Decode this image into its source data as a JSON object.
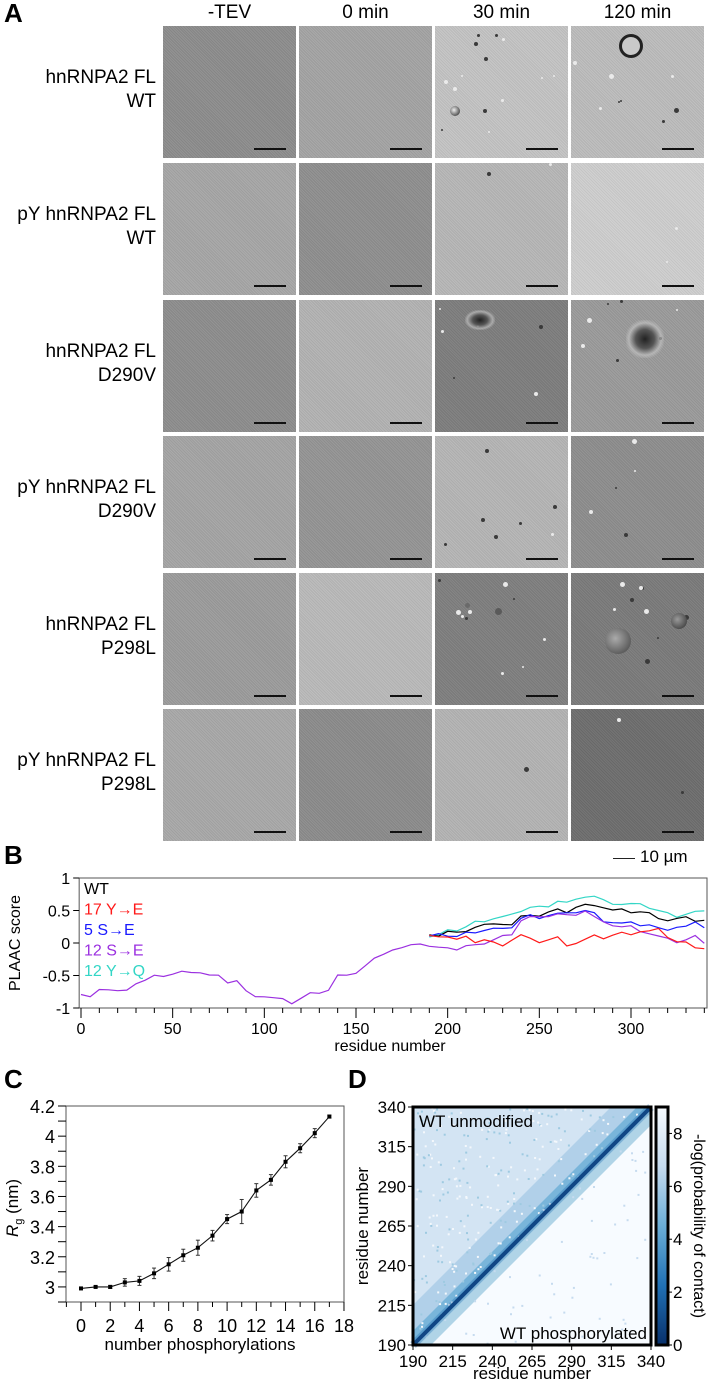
{
  "panels": {
    "A": {
      "letter": "A",
      "columns": [
        "-TEV",
        "0 min",
        "30 min",
        "120 min"
      ],
      "rows": [
        {
          "line1": "hnRNPA2 FL",
          "line2": "WT",
          "tones": [
            "#8d8d8d",
            "#a4a4a4",
            "#c4c4c4",
            "#bdbdbd"
          ]
        },
        {
          "line1": "pY hnRNPA2 FL",
          "line2": "WT",
          "tones": [
            "#a7a7a7",
            "#8f8f8f",
            "#b7b7b7",
            "#cfcfcf"
          ]
        },
        {
          "line1": "hnRNPA2 FL",
          "line2": "D290V",
          "tones": [
            "#8e8e8e",
            "#b3b3b3",
            "#7e7e7e",
            "#9b9b9b"
          ]
        },
        {
          "line1": "pY hnRNPA2 FL",
          "line2": "D290V",
          "tones": [
            "#a5a5a5",
            "#959595",
            "#b6b6b6",
            "#8e8e8e"
          ]
        },
        {
          "line1": "hnRNPA2 FL",
          "line2": "P298L",
          "tones": [
            "#9c9c9c",
            "#bababa",
            "#7f7f7f",
            "#7b7b7b"
          ]
        },
        {
          "line1": "pY hnRNPA2 FL",
          "line2": "P298L",
          "tones": [
            "#a9a9a9",
            "#8c8c8c",
            "#b4b4b4",
            "#6e6e6e"
          ]
        }
      ],
      "scale_bar_label": "10 µm"
    },
    "B": {
      "letter": "B"
    },
    "C": {
      "letter": "C"
    },
    "D": {
      "letter": "D"
    }
  },
  "chart_data": [
    {
      "id": "B",
      "type": "line",
      "title": "",
      "xlabel": "residue number",
      "ylabel": "PLAAC score",
      "xlim": [
        -1,
        341
      ],
      "ylim": [
        -1,
        1
      ],
      "xticks": [
        0,
        50,
        100,
        150,
        200,
        250,
        300
      ],
      "yticks": [
        -1,
        -0.5,
        0,
        0.5,
        1
      ],
      "grid": false,
      "legend_position": "upper-left-inside",
      "x": [
        0,
        5,
        10,
        15,
        20,
        25,
        30,
        35,
        40,
        45,
        50,
        55,
        60,
        65,
        70,
        75,
        80,
        85,
        90,
        95,
        100,
        105,
        110,
        115,
        120,
        125,
        130,
        135,
        140,
        145,
        150,
        155,
        160,
        165,
        170,
        175,
        180,
        185,
        190,
        195,
        200,
        205,
        210,
        215,
        220,
        225,
        230,
        235,
        240,
        245,
        250,
        255,
        260,
        265,
        270,
        275,
        280,
        285,
        290,
        295,
        300,
        305,
        310,
        315,
        320,
        325,
        330,
        335,
        340
      ],
      "series": [
        {
          "name": "WT",
          "color": "#000000",
          "values": [
            -0.8,
            -0.85,
            -0.7,
            -0.72,
            -0.75,
            -0.7,
            -0.62,
            -0.58,
            -0.52,
            -0.5,
            -0.48,
            -0.45,
            -0.43,
            -0.45,
            -0.5,
            -0.52,
            -0.6,
            -0.58,
            -0.75,
            -0.8,
            -0.82,
            -0.85,
            -0.88,
            -0.92,
            -0.85,
            -0.78,
            -0.75,
            -0.72,
            -0.5,
            -0.52,
            -0.45,
            -0.35,
            -0.25,
            -0.15,
            -0.1,
            -0.05,
            0.0,
            0.08,
            0.1,
            0.12,
            0.18,
            0.15,
            0.2,
            0.25,
            0.28,
            0.27,
            0.3,
            0.28,
            0.4,
            0.45,
            0.42,
            0.47,
            0.5,
            0.48,
            0.55,
            0.58,
            0.6,
            0.55,
            0.5,
            0.5,
            0.48,
            0.48,
            0.45,
            0.4,
            0.35,
            0.37,
            0.38,
            0.35,
            0.35
          ]
        },
        {
          "name": "17 Y→E",
          "color": "#ff1a1a",
          "values": [
            -0.8,
            -0.85,
            -0.7,
            -0.72,
            -0.75,
            -0.7,
            -0.62,
            -0.58,
            -0.52,
            -0.5,
            -0.48,
            -0.45,
            -0.43,
            -0.45,
            -0.5,
            -0.52,
            -0.6,
            -0.58,
            -0.75,
            -0.8,
            -0.82,
            -0.85,
            -0.88,
            -0.92,
            -0.85,
            -0.78,
            -0.75,
            -0.72,
            -0.5,
            -0.52,
            -0.45,
            -0.35,
            -0.25,
            -0.15,
            -0.1,
            -0.05,
            0.0,
            0.08,
            0.1,
            0.12,
            0.1,
            0.05,
            0.08,
            0.02,
            0.05,
            0.0,
            -0.02,
            0.05,
            0.12,
            0.05,
            0.02,
            0.05,
            0.08,
            -0.02,
            0.0,
            0.05,
            0.1,
            0.08,
            0.12,
            0.15,
            0.15,
            0.18,
            0.18,
            0.2,
            0.1,
            0.02,
            0.0,
            -0.05,
            -0.08
          ]
        },
        {
          "name": "5 S→E",
          "color": "#1a1aff",
          "values": [
            -0.8,
            -0.85,
            -0.7,
            -0.72,
            -0.75,
            -0.7,
            -0.62,
            -0.58,
            -0.52,
            -0.5,
            -0.48,
            -0.45,
            -0.43,
            -0.45,
            -0.5,
            -0.52,
            -0.6,
            -0.58,
            -0.75,
            -0.8,
            -0.82,
            -0.85,
            -0.88,
            -0.92,
            -0.85,
            -0.78,
            -0.75,
            -0.72,
            -0.5,
            -0.52,
            -0.45,
            -0.35,
            -0.25,
            -0.15,
            -0.1,
            -0.05,
            0.0,
            0.08,
            0.1,
            0.12,
            0.12,
            0.1,
            0.15,
            0.18,
            0.2,
            0.22,
            0.2,
            0.25,
            0.38,
            0.42,
            0.4,
            0.43,
            0.45,
            0.44,
            0.48,
            0.5,
            0.45,
            0.35,
            0.32,
            0.3,
            0.3,
            0.28,
            0.28,
            0.22,
            0.22,
            0.25,
            0.25,
            0.3,
            0.25
          ]
        },
        {
          "name": "12 S→E",
          "color": "#9b30e0",
          "values": [
            -0.8,
            -0.85,
            -0.7,
            -0.72,
            -0.75,
            -0.7,
            -0.62,
            -0.58,
            -0.52,
            -0.5,
            -0.48,
            -0.45,
            -0.43,
            -0.45,
            -0.5,
            -0.52,
            -0.6,
            -0.58,
            -0.75,
            -0.8,
            -0.82,
            -0.85,
            -0.88,
            -0.92,
            -0.85,
            -0.78,
            -0.75,
            -0.72,
            -0.5,
            -0.52,
            -0.45,
            -0.35,
            -0.25,
            -0.15,
            -0.1,
            -0.08,
            -0.05,
            0.0,
            -0.05,
            -0.08,
            -0.05,
            -0.1,
            -0.05,
            -0.05,
            0.0,
            0.05,
            0.1,
            0.15,
            0.35,
            0.4,
            0.38,
            0.42,
            0.45,
            0.42,
            0.45,
            0.5,
            0.4,
            0.3,
            0.28,
            0.25,
            0.25,
            0.2,
            0.15,
            0.1,
            0.05,
            0.02,
            0.05,
            0.1,
            0.02
          ]
        },
        {
          "name": "12 Y→Q",
          "color": "#33d6c6",
          "values": [
            -0.8,
            -0.85,
            -0.7,
            -0.72,
            -0.75,
            -0.7,
            -0.62,
            -0.58,
            -0.52,
            -0.5,
            -0.48,
            -0.45,
            -0.43,
            -0.45,
            -0.5,
            -0.52,
            -0.6,
            -0.58,
            -0.75,
            -0.8,
            -0.82,
            -0.85,
            -0.88,
            -0.92,
            -0.85,
            -0.78,
            -0.75,
            -0.72,
            -0.5,
            -0.52,
            -0.45,
            -0.35,
            -0.25,
            -0.15,
            -0.1,
            -0.05,
            0.0,
            0.08,
            0.1,
            0.12,
            0.18,
            0.2,
            0.25,
            0.32,
            0.35,
            0.38,
            0.4,
            0.42,
            0.5,
            0.55,
            0.55,
            0.58,
            0.65,
            0.62,
            0.65,
            0.72,
            0.72,
            0.65,
            0.62,
            0.6,
            0.6,
            0.58,
            0.55,
            0.5,
            0.45,
            0.42,
            0.45,
            0.48,
            0.47
          ]
        }
      ]
    },
    {
      "id": "C",
      "type": "line",
      "title": "",
      "xlabel": "number phosphorylations",
      "ylabel": "Rg (nm)",
      "ylabel_main": "R",
      "ylabel_sub": "g",
      "ylabel_unit": " (nm)",
      "xlim": [
        -1,
        18
      ],
      "ylim": [
        2.9,
        4.2
      ],
      "xticks": [
        0,
        2,
        4,
        6,
        8,
        10,
        12,
        14,
        16,
        18
      ],
      "yticks": [
        3,
        3.2,
        3.4,
        3.6,
        3.8,
        4,
        4.2
      ],
      "grid": false,
      "x": [
        0,
        1,
        2,
        3,
        4,
        5,
        6,
        7,
        8,
        9,
        10,
        11,
        12,
        13,
        14,
        15,
        16,
        17
      ],
      "values": [
        2.99,
        3.0,
        3.0,
        3.03,
        3.04,
        3.09,
        3.15,
        3.21,
        3.26,
        3.34,
        3.45,
        3.5,
        3.64,
        3.71,
        3.83,
        3.92,
        4.02,
        4.13
      ],
      "errors": [
        0.005,
        0.005,
        0.01,
        0.025,
        0.03,
        0.035,
        0.045,
        0.04,
        0.05,
        0.035,
        0.03,
        0.08,
        0.045,
        0.035,
        0.04,
        0.03,
        0.03,
        0.01
      ]
    },
    {
      "id": "D",
      "type": "heatmap",
      "title": "",
      "xlabel": "residue number",
      "ylabel": "residue number",
      "xticks": [
        190,
        215,
        240,
        265,
        290,
        315,
        340
      ],
      "yticks": [
        190,
        215,
        240,
        265,
        290,
        315,
        340
      ],
      "range": [
        190,
        340
      ],
      "upper_label": "WT unmodified",
      "lower_label": "WT phosphorylated",
      "colorbar_label": "-log(probability of contact)",
      "colorbar_ticks": [
        0,
        2,
        4,
        6,
        8
      ],
      "colorbar_range": [
        0,
        9
      ],
      "colormap": [
        "#08306b",
        "#2171b5",
        "#6baed6",
        "#c6dbef",
        "#f7fbff"
      ]
    }
  ]
}
